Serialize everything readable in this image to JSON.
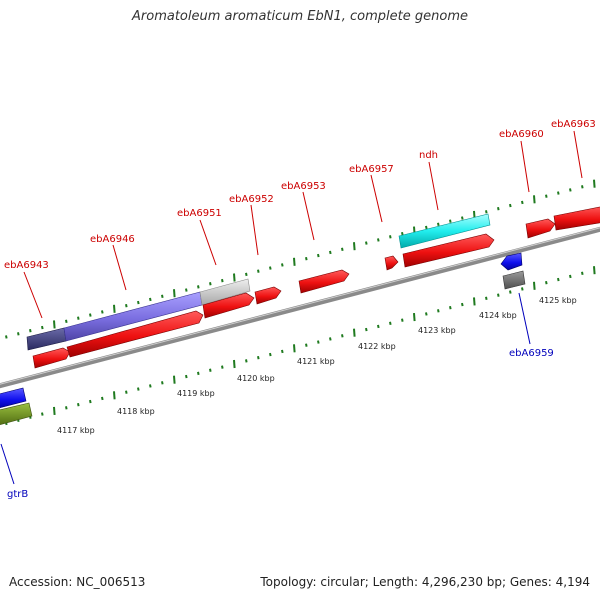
{
  "title": "Aromatoleum aromaticum EbN1, complete genome",
  "footer": {
    "accession": "Accession: NC_006513",
    "stats": "Topology: circular; Length: 4,296,230 bp; Genes: 4,194"
  },
  "colors": {
    "forward_gene": "#ee1111",
    "reverse_gene": "#1111ee",
    "label_forward": "#cc0000",
    "label_reverse": "#0000bb",
    "backbone": "#8a8a8a",
    "ticks": "#1f7a1f"
  },
  "kbp_labels": [
    "4117 kbp",
    "4118 kbp",
    "4119 kbp",
    "4120 kbp",
    "4121 kbp",
    "4122 kbp",
    "4123 kbp",
    "4124 kbp",
    "4125 kbp"
  ],
  "gene_labels_top": [
    "ebA6943",
    "ebA6946",
    "ebA6951",
    "ebA6952",
    "ebA6953",
    "ebA6957",
    "ndh",
    "ebA6960",
    "ebA6963"
  ],
  "gene_labels_bottom": [
    "ebA6959",
    "gtrB"
  ]
}
